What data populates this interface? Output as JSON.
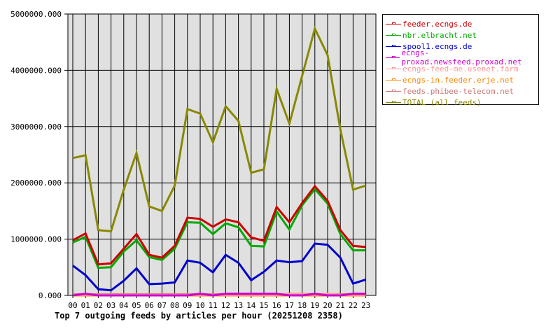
{
  "chart_data": {
    "type": "line",
    "title": "Top 7 outgoing feeds by articles per hour (20251208 2358)",
    "xlabel": "",
    "ylabel": "",
    "ylim": [
      0,
      5000000
    ],
    "yticks": [
      "0.000",
      "1000000.000",
      "2000000.000",
      "3000000.000",
      "4000000.000",
      "5000000.000"
    ],
    "grid": true,
    "legend_position": "right-top",
    "categories": [
      "00",
      "01",
      "02",
      "03",
      "04",
      "05",
      "06",
      "07",
      "08",
      "09",
      "10",
      "11",
      "12",
      "13",
      "14",
      "15",
      "16",
      "17",
      "18",
      "19",
      "20",
      "21",
      "22",
      "23"
    ],
    "series": [
      {
        "name": "feeder.ecngs.de",
        "color": "#cc0000",
        "values": [
          980000,
          1100000,
          550000,
          570000,
          830000,
          1090000,
          720000,
          670000,
          880000,
          1380000,
          1360000,
          1220000,
          1350000,
          1300000,
          1030000,
          970000,
          1570000,
          1300000,
          1640000,
          1940000,
          1680000,
          1160000,
          880000,
          860000
        ]
      },
      {
        "name": "nbr.elbracht.net",
        "color": "#00aa00",
        "values": [
          940000,
          1040000,
          490000,
          500000,
          780000,
          980000,
          680000,
          630000,
          830000,
          1300000,
          1290000,
          1090000,
          1280000,
          1210000,
          880000,
          870000,
          1490000,
          1170000,
          1600000,
          1890000,
          1630000,
          1090000,
          800000,
          800000
        ]
      },
      {
        "name": "spool1.ecngs.de",
        "color": "#0000cc",
        "values": [
          530000,
          360000,
          110000,
          90000,
          260000,
          480000,
          200000,
          210000,
          230000,
          620000,
          580000,
          410000,
          720000,
          580000,
          270000,
          420000,
          620000,
          590000,
          610000,
          920000,
          900000,
          670000,
          210000,
          280000
        ]
      },
      {
        "name": "ecngs-proxad.newsfeed.proxad.net",
        "color": "#cc00cc",
        "values": [
          0,
          30000,
          0,
          0,
          0,
          0,
          0,
          0,
          0,
          0,
          30000,
          0,
          30000,
          30000,
          30000,
          30000,
          30000,
          0,
          0,
          30000,
          0,
          0,
          30000,
          30000
        ]
      },
      {
        "name": "ecngs-feed-me.usenet.farm",
        "color": "#ff9999",
        "values": [
          10000,
          10000,
          10000,
          10000,
          10000,
          10000,
          10000,
          10000,
          10000,
          10000,
          10000,
          10000,
          10000,
          10000,
          10000,
          10000,
          10000,
          30000,
          30000,
          10000,
          30000,
          10000,
          10000,
          10000
        ]
      },
      {
        "name": "ecngs-in.feeder.erje.net",
        "color": "#ff8800",
        "values": [
          0,
          0,
          0,
          0,
          0,
          0,
          0,
          0,
          0,
          0,
          0,
          0,
          0,
          0,
          0,
          0,
          0,
          0,
          0,
          0,
          0,
          0,
          0,
          0
        ]
      },
      {
        "name": "feeds.phibee-telecom.net",
        "color": "#cc7777",
        "values": [
          20000,
          20000,
          20000,
          20000,
          20000,
          20000,
          20000,
          20000,
          20000,
          20000,
          20000,
          20000,
          20000,
          20000,
          20000,
          20000,
          20000,
          20000,
          20000,
          20000,
          20000,
          20000,
          20000,
          20000
        ]
      },
      {
        "name": "TOTAL (all feeds)",
        "color": "#888800",
        "values": [
          2440000,
          2490000,
          1160000,
          1140000,
          1880000,
          2530000,
          1580000,
          1500000,
          1950000,
          3310000,
          3230000,
          2720000,
          3360000,
          3100000,
          2180000,
          2240000,
          3670000,
          3050000,
          3900000,
          4740000,
          4270000,
          2950000,
          1880000,
          1950000
        ]
      }
    ]
  },
  "legend": {
    "items": [
      {
        "label": "feeder.ecngs.de",
        "color": "#cc0000"
      },
      {
        "label": "nbr.elbracht.net",
        "color": "#00aa00"
      },
      {
        "label": "spool1.ecngs.de",
        "color": "#0000cc"
      },
      {
        "label": "ecngs-proxad.newsfeed.proxad.net",
        "color": "#cc00cc"
      },
      {
        "label": "ecngs-feed-me.usenet.farm",
        "color": "#ff9999"
      },
      {
        "label": "ecngs-in.feeder.erje.net",
        "color": "#ff8800"
      },
      {
        "label": "feeds.phibee-telecom.net",
        "color": "#cc7777"
      },
      {
        "label": "TOTAL (all feeds)",
        "color": "#888800"
      }
    ]
  },
  "caption": "Top 7 outgoing feeds by articles per hour (20251208 2358)"
}
